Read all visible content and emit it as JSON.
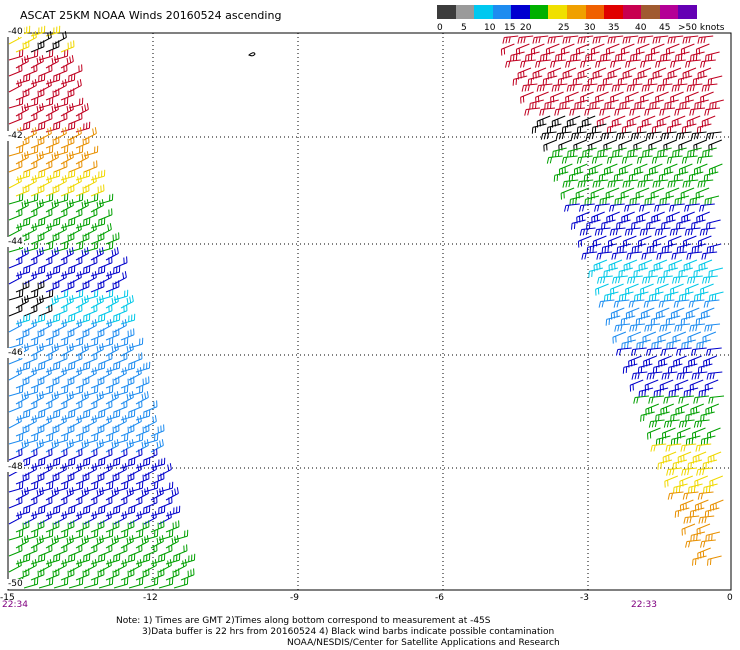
{
  "title": "ASCAT 25KM NOAA Winds 20160524 ascending",
  "legend": {
    "colors": [
      "#3c3c3c",
      "#9a9a9a",
      "#00c8f0",
      "#1e8cf0",
      "#0000d0",
      "#00b000",
      "#f0e000",
      "#f0a000",
      "#f06000",
      "#e00000",
      "#c80050",
      "#a05a30",
      "#b40096",
      "#6400b4"
    ],
    "labels": [
      "0",
      "5",
      "10",
      "15",
      "20",
      "25",
      "30",
      "35",
      "40",
      "45",
      ">50 knots"
    ]
  },
  "axes": {
    "x_ticks": [
      "-15",
      "-12",
      "-9",
      "-6",
      "-3",
      "0"
    ],
    "y_ticks": [
      "-40",
      "-42",
      "-44",
      "-46",
      "-48",
      "-50"
    ]
  },
  "times": {
    "left": "22:34",
    "right": "22:33"
  },
  "notes": {
    "line1": "Note: 1) Times are GMT 2)Times along bottom correspond to measurement at -45S",
    "line2": "3)Data buffer is 22 hrs from 20160524 4) Black wind barbs indicate possible contamination",
    "line3": "NOAA/NESDIS/Center for Satellite Applications and Research"
  },
  "colors": {
    "black": "#000000",
    "gray": "#808080",
    "cyan": "#00c8e8",
    "lightblue": "#1e8cf0",
    "blue": "#0000cc",
    "green": "#00a000",
    "yellow": "#f0d800",
    "orange": "#e89000",
    "redorange": "#e04a00",
    "red": "#c00020",
    "brown": "#a05a30",
    "time": "#800080"
  }
}
